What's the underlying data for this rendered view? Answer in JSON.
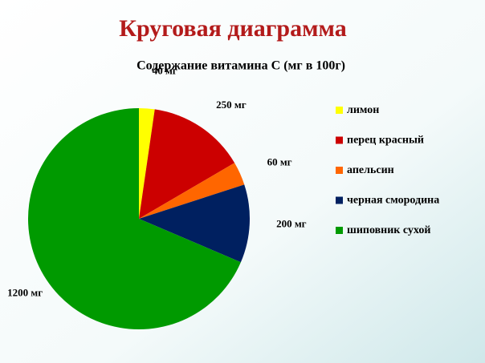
{
  "chart_data": {
    "type": "pie",
    "title": "Круговая диаграмма",
    "subtitle": "Содержание витамина  С (мг в 100г)",
    "categories": [
      "лимон",
      "перец красный",
      "апельсин",
      "черная смородина",
      "шиповник сухой"
    ],
    "values": [
      40,
      250,
      60,
      200,
      1200
    ],
    "value_labels": [
      "40 мг",
      "250 мг",
      "60 мг",
      "200 мг",
      "1200 мг"
    ],
    "colors": [
      "#ffff00",
      "#cc0000",
      "#ff6600",
      "#002060",
      "#009a00"
    ],
    "legend": "right"
  }
}
